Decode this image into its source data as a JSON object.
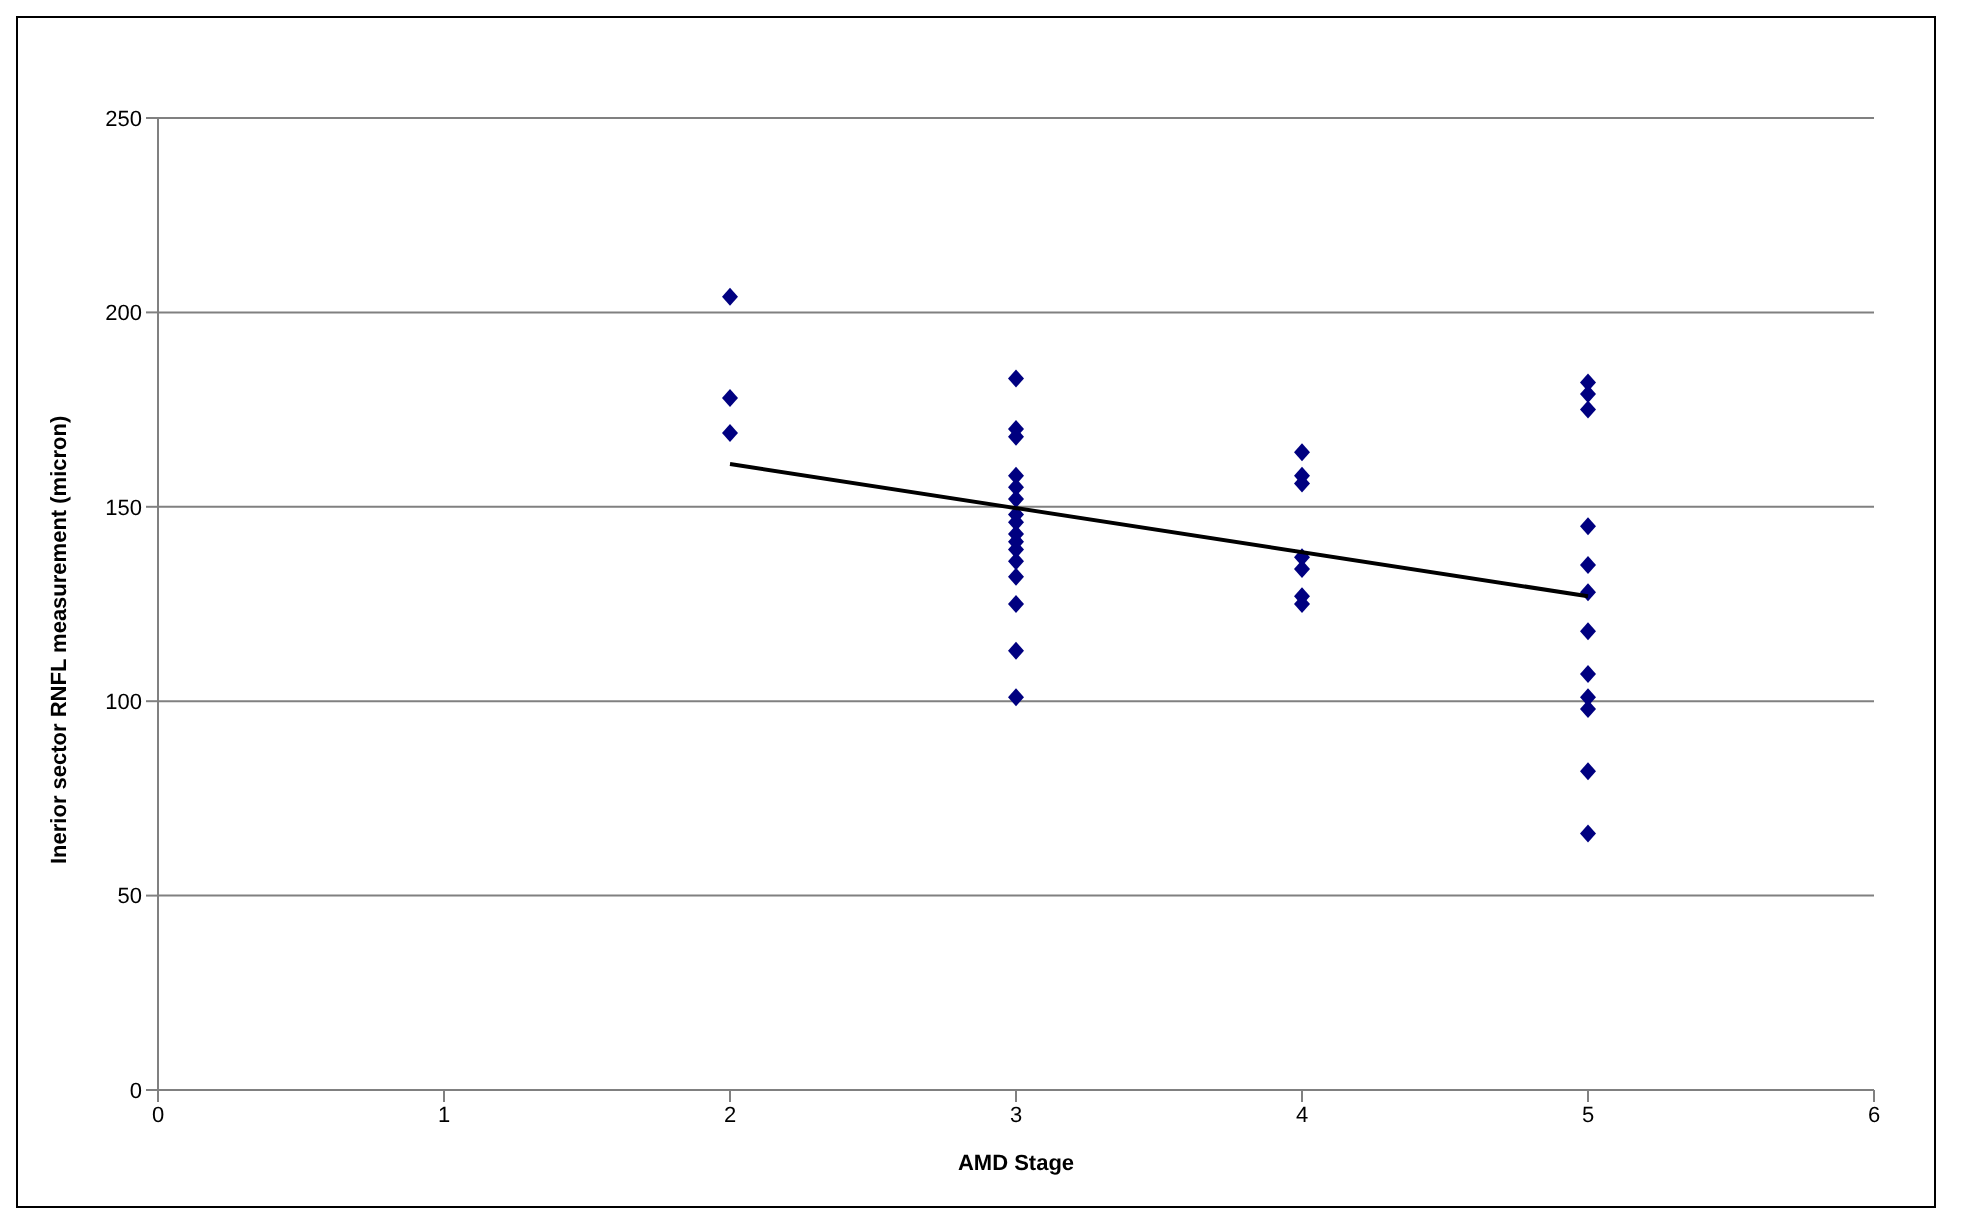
{
  "chart_data": {
    "type": "scatter",
    "xlabel": "AMD Stage",
    "ylabel": "Inerior sector RNFL measurement (micron)",
    "xlim": [
      0,
      6
    ],
    "xticks": [
      0,
      1,
      2,
      3,
      4,
      5,
      6
    ],
    "ylim": [
      0,
      250
    ],
    "yticks": [
      0,
      50,
      100,
      150,
      200,
      250
    ],
    "grid": "y",
    "legend": false,
    "marker": "diamond",
    "series": [
      {
        "color": "#000080",
        "x": [
          2,
          2,
          2,
          3,
          3,
          3,
          3,
          3,
          3,
          3,
          3,
          3,
          3,
          3,
          3,
          3,
          3,
          3,
          3,
          4,
          4,
          4,
          4,
          4,
          4,
          4,
          5,
          5,
          5,
          5,
          5,
          5,
          5,
          5,
          5,
          5,
          5,
          5
        ],
        "values": [
          204,
          178,
          169,
          183,
          170,
          168,
          158,
          155,
          152,
          148,
          146,
          143,
          141,
          139,
          136,
          132,
          125,
          113,
          101,
          164,
          158,
          156,
          137,
          134,
          127,
          125,
          182,
          179,
          175,
          145,
          135,
          128,
          118,
          107,
          101,
          98,
          82,
          66
        ]
      },
      {
        "type": "line",
        "color": "#000000",
        "marker": "none",
        "x": [
          2,
          5
        ],
        "values": [
          161,
          127
        ]
      }
    ]
  }
}
